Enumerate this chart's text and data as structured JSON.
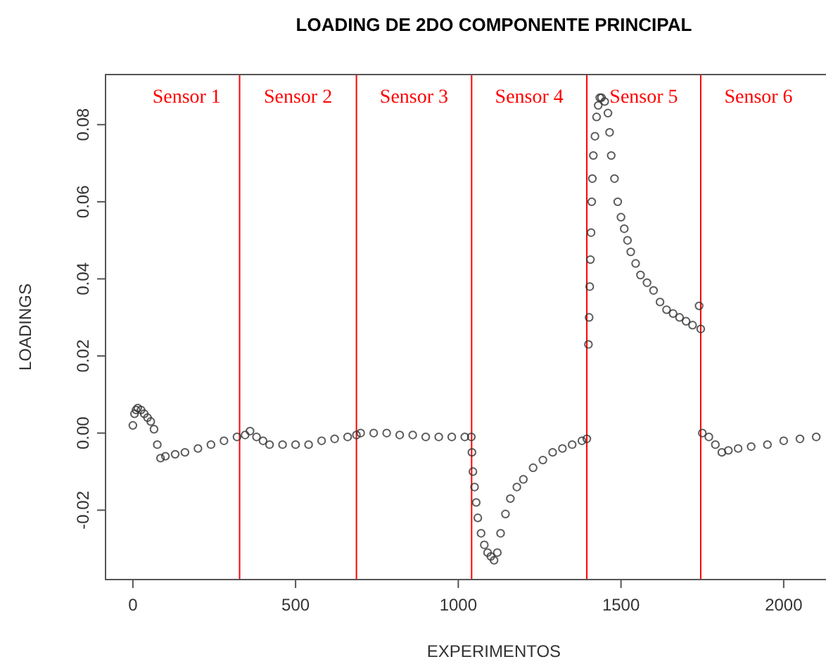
{
  "chart_data": {
    "type": "scatter",
    "title": "LOADING DE 2DO COMPONENTE PRINCIPAL",
    "xlabel": "EXPERIMENTOS",
    "ylabel": "LOADINGS",
    "xlim": [
      -84,
      2130
    ],
    "ylim": [
      -0.038,
      0.093
    ],
    "xticks": [
      0,
      500,
      1000,
      1500,
      2000
    ],
    "yticks": [
      {
        "value": -0.02,
        "label": "-0.02"
      },
      {
        "value": 0,
        "label": "0.00"
      },
      {
        "value": 0.02,
        "label": "0.02"
      },
      {
        "value": 0.04,
        "label": "0.04"
      },
      {
        "value": 0.06,
        "label": "0.06"
      },
      {
        "value": 0.08,
        "label": "0.08"
      }
    ],
    "grid": false,
    "marker": "circle",
    "ref_lines": [
      {
        "axis": "x",
        "value": 328,
        "color": "#ff0000"
      },
      {
        "axis": "x",
        "value": 687,
        "color": "#ff0000"
      },
      {
        "axis": "x",
        "value": 1041,
        "color": "#ff0000"
      },
      {
        "axis": "x",
        "value": 1395,
        "color": "#ff0000"
      },
      {
        "axis": "x",
        "value": 1745,
        "color": "#ff0000"
      }
    ],
    "annotations": [
      "Sensor 1",
      "Sensor 2",
      "Sensor 3",
      "Sensor 4",
      "Sensor 5",
      "Sensor 6"
    ],
    "series": [
      {
        "color": "#333333",
        "x": [
          0,
          5,
          10,
          15,
          25,
          35,
          45,
          55,
          65,
          75,
          85,
          100,
          130,
          160,
          200,
          240,
          280,
          320,
          345,
          360,
          380,
          400,
          420,
          460,
          500,
          540,
          580,
          620,
          660,
          687,
          700,
          740,
          780,
          820,
          860,
          900,
          940,
          980,
          1020,
          1040,
          1042,
          1045,
          1050,
          1055,
          1060,
          1070,
          1080,
          1090,
          1100,
          1110,
          1120,
          1130,
          1145,
          1160,
          1180,
          1200,
          1230,
          1260,
          1290,
          1320,
          1350,
          1380,
          1395,
          1400,
          1402,
          1404,
          1406,
          1408,
          1410,
          1412,
          1415,
          1420,
          1425,
          1430,
          1435,
          1440,
          1450,
          1460,
          1465,
          1470,
          1480,
          1490,
          1500,
          1510,
          1520,
          1530,
          1545,
          1560,
          1580,
          1600,
          1620,
          1640,
          1660,
          1680,
          1700,
          1720,
          1740,
          1745,
          1750,
          1770,
          1790,
          1810,
          1830,
          1860,
          1900,
          1950,
          2000,
          2050,
          2100
        ],
        "values": [
          0.002,
          0.005,
          0.006,
          0.0065,
          0.006,
          0.005,
          0.004,
          0.003,
          0.001,
          -0.003,
          -0.0065,
          -0.006,
          -0.0055,
          -0.005,
          -0.004,
          -0.003,
          -0.002,
          -0.001,
          -0.0005,
          0.0005,
          -0.001,
          -0.002,
          -0.003,
          -0.003,
          -0.003,
          -0.003,
          -0.002,
          -0.0015,
          -0.001,
          -0.0005,
          0,
          0,
          0,
          -0.0005,
          -0.0005,
          -0.001,
          -0.001,
          -0.001,
          -0.001,
          -0.001,
          -0.005,
          -0.01,
          -0.014,
          -0.018,
          -0.022,
          -0.026,
          -0.029,
          -0.031,
          -0.032,
          -0.033,
          -0.031,
          -0.026,
          -0.021,
          -0.017,
          -0.014,
          -0.012,
          -0.009,
          -0.007,
          -0.005,
          -0.004,
          -0.003,
          -0.002,
          -0.0015,
          0.023,
          0.03,
          0.038,
          0.045,
          0.052,
          0.06,
          0.066,
          0.072,
          0.077,
          0.082,
          0.085,
          0.087,
          0.087,
          0.086,
          0.083,
          0.078,
          0.072,
          0.066,
          0.06,
          0.056,
          0.053,
          0.05,
          0.047,
          0.044,
          0.041,
          0.039,
          0.037,
          0.034,
          0.032,
          0.031,
          0.03,
          0.029,
          0.028,
          0.033,
          0.027,
          0,
          -0.001,
          -0.003,
          -0.005,
          -0.0045,
          -0.004,
          -0.0035,
          -0.003,
          -0.002,
          -0.0015,
          -0.001
        ]
      }
    ]
  }
}
